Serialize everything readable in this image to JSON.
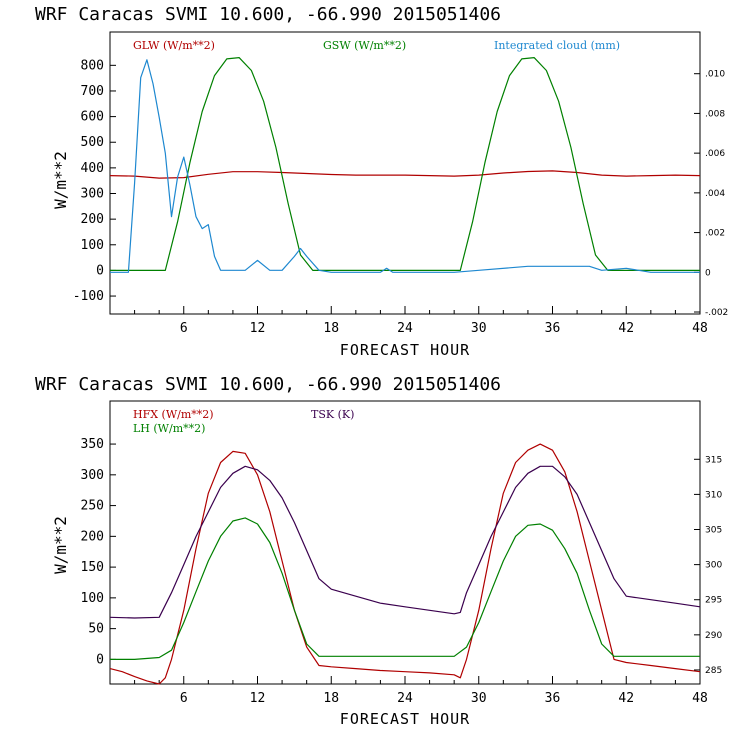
{
  "chart_data": [
    {
      "type": "line",
      "title": "WRF  Caracas SVMI  10.600, -66.990  2015051406",
      "xlabel": "FORECAST HOUR",
      "ylabel": "W/m**2",
      "xlim": [
        0,
        48
      ],
      "ylim": [
        -170,
        930
      ],
      "y2lim": [
        -0.0021,
        0.0121
      ],
      "xticks": [
        6,
        12,
        18,
        24,
        30,
        36,
        42,
        48
      ],
      "xtick_labels": [
        "6",
        "12",
        "18",
        "24",
        "30",
        "36",
        "42",
        "48"
      ],
      "yticks": [
        -100,
        0,
        100,
        200,
        300,
        400,
        500,
        600,
        700,
        800
      ],
      "ytick_labels": [
        "-100",
        "0",
        "100",
        "200",
        "300",
        "400",
        "500",
        "600",
        "700",
        "800"
      ],
      "y2ticks": [
        -0.002,
        0,
        0.002,
        0.004,
        0.006,
        0.008,
        0.01
      ],
      "y2tick_labels": [
        "-.002",
        "0",
        ".002",
        ".004",
        ".006",
        ".008",
        ".010"
      ],
      "series": [
        {
          "name": "GLW (W/m**2)",
          "color": "#b00000",
          "axis": "left",
          "x": [
            0,
            2,
            4,
            6,
            8,
            10,
            12,
            14,
            16,
            18,
            20,
            22,
            24,
            26,
            28,
            30,
            32,
            34,
            36,
            38,
            40,
            42,
            44,
            46,
            48
          ],
          "y": [
            370,
            368,
            360,
            362,
            375,
            385,
            385,
            382,
            378,
            374,
            372,
            372,
            372,
            370,
            368,
            372,
            380,
            386,
            388,
            382,
            372,
            368,
            370,
            372,
            370
          ]
        },
        {
          "name": "GSW (W/m**2)",
          "color": "#008000",
          "axis": "left",
          "x": [
            0,
            4,
            4.5,
            5.5,
            6.5,
            7.5,
            8.5,
            9.5,
            10.5,
            11.5,
            12.5,
            13.5,
            14.5,
            15.5,
            16.5,
            17,
            28.5,
            29.5,
            30.5,
            31.5,
            32.5,
            33.5,
            34.5,
            35.5,
            36.5,
            37.5,
            38.5,
            39.5,
            40.5,
            41,
            48
          ],
          "y": [
            0,
            0,
            0,
            190,
            420,
            620,
            760,
            825,
            830,
            780,
            660,
            480,
            260,
            60,
            0,
            0,
            0,
            190,
            420,
            620,
            760,
            825,
            830,
            780,
            660,
            480,
            260,
            60,
            0,
            0,
            0
          ]
        },
        {
          "name": "Integrated cloud (mm)",
          "color": "#1e88d0",
          "axis": "right",
          "x": [
            0,
            1.5,
            2,
            2.5,
            3,
            3.5,
            4,
            4.5,
            5,
            5.5,
            6,
            6.5,
            7,
            7.5,
            8,
            8.5,
            9,
            11,
            12,
            13,
            14,
            15,
            15.5,
            16,
            17,
            18,
            22,
            22.5,
            23,
            24,
            28,
            30,
            34,
            36,
            38,
            39,
            40,
            42,
            43,
            44,
            48
          ],
          "y": [
            0,
            0,
            0.0045,
            0.0098,
            0.0107,
            0.0095,
            0.0078,
            0.006,
            0.0028,
            0.0048,
            0.0058,
            0.0044,
            0.0028,
            0.0022,
            0.0024,
            0.0008,
            0.0001,
            0.0001,
            0.0006,
            0.0001,
            0.0001,
            0.0008,
            0.0012,
            0.0008,
            0.0001,
            0,
            0,
            0.0002,
            0,
            0,
            0,
            0.0001,
            0.0003,
            0.0003,
            0.0003,
            0.0003,
            0.0001,
            0.0002,
            0.0001,
            0,
            0
          ]
        }
      ],
      "legend": [
        "GLW (W/m**2)",
        "GSW (W/m**2)",
        "Integrated cloud (mm)"
      ]
    },
    {
      "type": "line",
      "title": "WRF  Caracas SVMI  10.600, -66.990  2015051406",
      "xlabel": "FORECAST HOUR",
      "ylabel": "W/m**2",
      "xlim": [
        0,
        48
      ],
      "ylim": [
        -40,
        420
      ],
      "y2lim": [
        283.0,
        323.3
      ],
      "xticks": [
        6,
        12,
        18,
        24,
        30,
        36,
        42,
        48
      ],
      "xtick_labels": [
        "6",
        "12",
        "18",
        "24",
        "30",
        "36",
        "42",
        "48"
      ],
      "yticks": [
        0,
        50,
        100,
        150,
        200,
        250,
        300,
        350
      ],
      "ytick_labels": [
        "0",
        "50",
        "100",
        "150",
        "200",
        "250",
        "300",
        "350"
      ],
      "y2ticks": [
        285,
        290,
        295,
        300,
        305,
        310,
        315
      ],
      "y2tick_labels": [
        "285",
        "290",
        "295",
        "300",
        "305",
        "310",
        "315"
      ],
      "series": [
        {
          "name": "HFX (W/m**2)",
          "color": "#b00000",
          "axis": "left",
          "x": [
            0,
            1,
            2,
            3,
            4,
            4.5,
            5,
            6,
            7,
            8,
            9,
            10,
            11,
            12,
            13,
            14,
            15,
            16,
            17,
            18,
            20,
            22,
            24,
            26,
            28,
            28.5,
            29,
            30,
            31,
            32,
            33,
            34,
            35,
            36,
            37,
            38,
            39,
            40,
            41,
            42,
            44,
            46,
            48
          ],
          "y": [
            -15,
            -20,
            -28,
            -35,
            -40,
            -30,
            0,
            80,
            180,
            270,
            320,
            338,
            335,
            300,
            240,
            160,
            80,
            20,
            -10,
            -12,
            -15,
            -18,
            -20,
            -22,
            -25,
            -30,
            0,
            80,
            180,
            270,
            320,
            340,
            350,
            340,
            305,
            240,
            160,
            80,
            0,
            -5,
            -10,
            -15,
            -20
          ]
        },
        {
          "name": "LH (W/m**2)",
          "color": "#008000",
          "axis": "left",
          "x": [
            0,
            2,
            4,
            5,
            6,
            7,
            8,
            9,
            10,
            11,
            12,
            13,
            14,
            15,
            16,
            17,
            18,
            22,
            26,
            28,
            29,
            30,
            31,
            32,
            33,
            34,
            35,
            36,
            37,
            38,
            39,
            40,
            41,
            42,
            44,
            48
          ],
          "y": [
            0,
            0,
            3,
            15,
            60,
            110,
            160,
            200,
            225,
            230,
            220,
            190,
            140,
            80,
            25,
            5,
            5,
            5,
            5,
            5,
            20,
            60,
            110,
            160,
            200,
            218,
            220,
            210,
            180,
            140,
            80,
            25,
            5,
            5,
            5,
            5
          ]
        },
        {
          "name": "TSK (K)",
          "color": "#3a004e",
          "axis": "right",
          "x": [
            0,
            2,
            4,
            5,
            6,
            7,
            8,
            9,
            10,
            11,
            12,
            13,
            14,
            15,
            16,
            17,
            18,
            20,
            22,
            24,
            26,
            28,
            28.5,
            29,
            30,
            31,
            32,
            33,
            34,
            35,
            36,
            37,
            38,
            39,
            40,
            41,
            42,
            44,
            46,
            48
          ],
          "y": [
            292.5,
            292.4,
            292.5,
            296,
            300,
            304,
            307.5,
            311,
            313,
            314,
            313.5,
            312,
            309.5,
            306,
            302,
            298,
            296.5,
            295.5,
            294.5,
            294,
            293.5,
            293,
            293.2,
            296,
            300,
            304,
            307.5,
            311,
            313,
            314,
            314,
            312.5,
            310,
            306,
            302,
            298,
            295.5,
            295,
            294.5,
            294
          ]
        }
      ],
      "legend": [
        "HFX (W/m**2)",
        "LH (W/m**2)",
        "TSK (K)"
      ]
    }
  ]
}
